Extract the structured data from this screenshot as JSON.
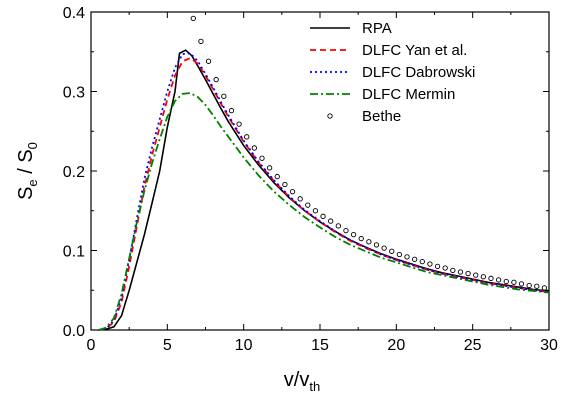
{
  "chart_data": {
    "type": "line",
    "x_axis": {
      "label_main": "v/v",
      "label_sub": "th",
      "range": [
        0,
        30
      ],
      "ticks": [
        "0",
        "5",
        "10",
        "15",
        "20",
        "25",
        "30"
      ]
    },
    "y_axis": {
      "label_main_1": "S",
      "label_sub_1": "e",
      "label_sep": " / S",
      "label_sub_2": "0",
      "range": [
        0,
        0.4
      ],
      "ticks": [
        "0.0",
        "0.1",
        "0.2",
        "0.3",
        "0.4"
      ]
    },
    "grid": false,
    "legend_position": "top-right",
    "series": [
      {
        "name": "RPA",
        "color": "#000000",
        "dash": "solid",
        "x": [
          0.5,
          1,
          1.5,
          2,
          2.5,
          3,
          3.5,
          4,
          4.5,
          5,
          5.5,
          5.8,
          6.2,
          6.6,
          7,
          7.5,
          8,
          8.5,
          9,
          10,
          11,
          12,
          13,
          14,
          15,
          16,
          17,
          18,
          19,
          20,
          21,
          22,
          23,
          24,
          25,
          26,
          27,
          28,
          29,
          30
        ],
        "y": [
          0.0,
          0.001,
          0.004,
          0.018,
          0.05,
          0.085,
          0.12,
          0.16,
          0.2,
          0.255,
          0.3,
          0.348,
          0.352,
          0.345,
          0.332,
          0.315,
          0.297,
          0.279,
          0.262,
          0.232,
          0.207,
          0.185,
          0.166,
          0.15,
          0.136,
          0.124,
          0.113,
          0.104,
          0.096,
          0.089,
          0.083,
          0.077,
          0.072,
          0.068,
          0.064,
          0.06,
          0.057,
          0.054,
          0.051,
          0.049
        ]
      },
      {
        "name": "DLFC Yan et al.",
        "color": "#ff0000",
        "dash": "dashed",
        "x": [
          0.5,
          1,
          1.5,
          2,
          2.5,
          3,
          3.5,
          4,
          4.5,
          5,
          5.5,
          6,
          6.5,
          7,
          7.5,
          8,
          8.5,
          9,
          10,
          11,
          12,
          13,
          14,
          15,
          16,
          17,
          18,
          19,
          20,
          21,
          22,
          23,
          24,
          25,
          26,
          27,
          28,
          29,
          30
        ],
        "y": [
          0.0,
          0.002,
          0.01,
          0.035,
          0.08,
          0.13,
          0.18,
          0.22,
          0.255,
          0.29,
          0.32,
          0.338,
          0.342,
          0.335,
          0.32,
          0.303,
          0.285,
          0.268,
          0.237,
          0.21,
          0.187,
          0.167,
          0.15,
          0.136,
          0.123,
          0.112,
          0.103,
          0.095,
          0.088,
          0.082,
          0.076,
          0.071,
          0.067,
          0.063,
          0.059,
          0.056,
          0.053,
          0.05,
          0.048
        ]
      },
      {
        "name": "DLFC Dabrowski",
        "color": "#0000ff",
        "dash": "dotted",
        "x": [
          0.5,
          1,
          1.5,
          2,
          2.5,
          3,
          3.5,
          4,
          4.5,
          5,
          5.5,
          6,
          6.5,
          7,
          7.5,
          8,
          8.5,
          9,
          10,
          11,
          12,
          13,
          14,
          15,
          16,
          17,
          18,
          19,
          20,
          21,
          22,
          23,
          24,
          25,
          26,
          27,
          28,
          29,
          30
        ],
        "y": [
          0.0,
          0.002,
          0.012,
          0.04,
          0.088,
          0.14,
          0.19,
          0.23,
          0.265,
          0.3,
          0.33,
          0.347,
          0.348,
          0.338,
          0.322,
          0.305,
          0.287,
          0.27,
          0.238,
          0.211,
          0.188,
          0.168,
          0.151,
          0.137,
          0.124,
          0.113,
          0.104,
          0.095,
          0.088,
          0.082,
          0.076,
          0.071,
          0.067,
          0.063,
          0.059,
          0.056,
          0.053,
          0.05,
          0.048
        ]
      },
      {
        "name": "DLFC Mermin",
        "color": "#008000",
        "dash": "dashdot",
        "x": [
          0.5,
          1,
          1.5,
          2,
          2.5,
          3,
          3.5,
          4,
          4.5,
          5,
          5.5,
          6,
          6.5,
          7,
          7.5,
          8,
          8.5,
          9,
          10,
          11,
          12,
          13,
          14,
          15,
          16,
          17,
          18,
          19,
          20,
          21,
          22,
          23,
          24,
          25,
          26,
          27,
          28,
          29,
          30
        ],
        "y": [
          0.0,
          0.003,
          0.015,
          0.045,
          0.09,
          0.135,
          0.175,
          0.21,
          0.24,
          0.268,
          0.288,
          0.297,
          0.298,
          0.293,
          0.283,
          0.27,
          0.256,
          0.243,
          0.217,
          0.194,
          0.174,
          0.157,
          0.142,
          0.129,
          0.117,
          0.107,
          0.099,
          0.091,
          0.085,
          0.079,
          0.073,
          0.069,
          0.065,
          0.061,
          0.057,
          0.054,
          0.051,
          0.049,
          0.047
        ]
      },
      {
        "name": "Bethe",
        "color": "#000000",
        "dash": "markers",
        "x": [
          6.7,
          7.2,
          7.7,
          8.2,
          8.7,
          9.2,
          9.7,
          10.2,
          10.7,
          11.2,
          11.7,
          12.2,
          12.7,
          13.2,
          13.7,
          14.2,
          14.7,
          15.2,
          15.7,
          16.2,
          16.7,
          17.2,
          17.7,
          18.2,
          18.7,
          19.2,
          19.7,
          20.2,
          20.7,
          21.2,
          21.7,
          22.2,
          22.7,
          23.2,
          23.7,
          24.2,
          24.7,
          25.2,
          25.7,
          26.2,
          26.7,
          27.2,
          27.7,
          28.2,
          28.7,
          29.2,
          29.7
        ],
        "y": [
          0.392,
          0.363,
          0.338,
          0.315,
          0.294,
          0.276,
          0.259,
          0.243,
          0.229,
          0.216,
          0.204,
          0.193,
          0.183,
          0.174,
          0.165,
          0.157,
          0.15,
          0.143,
          0.137,
          0.131,
          0.125,
          0.12,
          0.115,
          0.111,
          0.107,
          0.103,
          0.099,
          0.095,
          0.092,
          0.089,
          0.086,
          0.083,
          0.08,
          0.078,
          0.075,
          0.073,
          0.071,
          0.069,
          0.067,
          0.065,
          0.063,
          0.061,
          0.06,
          0.058,
          0.056,
          0.055,
          0.053
        ]
      }
    ]
  }
}
